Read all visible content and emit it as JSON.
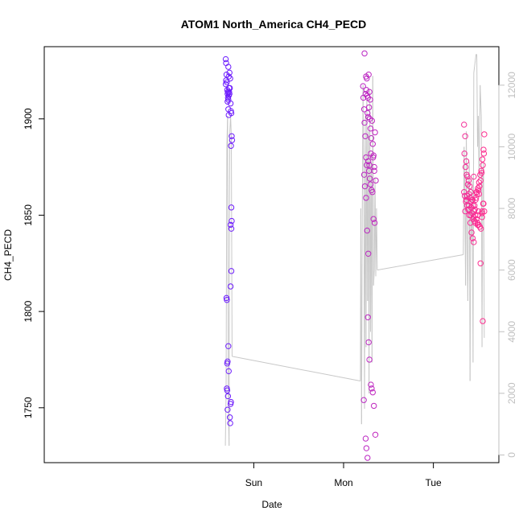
{
  "chart_data": {
    "type": "scatter",
    "title": "ATOM1 North_America CH4_PECD",
    "xlabel": "Date",
    "ylabel": "CH4_PECD",
    "x_unit": "hours since Sat 00:00",
    "xlim": [
      -32,
      89.5
    ],
    "ylim": [
      1721.5,
      1937.5
    ],
    "y2lim": [
      -250,
      13250
    ],
    "x_ticks": [
      {
        "x": 24,
        "label": "Sun"
      },
      {
        "x": 48,
        "label": "Mon"
      },
      {
        "x": 72,
        "label": "Tue"
      }
    ],
    "y_ticks": [
      1750,
      1800,
      1850,
      1900
    ],
    "y2_ticks": [
      0,
      2000,
      4000,
      6000,
      8000,
      10000,
      12000
    ],
    "grid": false,
    "legend": "none",
    "series": [
      {
        "style": "points",
        "axis": "left",
        "color_gradient": [
          "#6a1cff",
          "#ff2f8f"
        ],
        "x": [
          16.5,
          16.6,
          16.7,
          16.8,
          16.9,
          16.5,
          16.6,
          17.0,
          17.1,
          17.2,
          17.0,
          17.3,
          17.1,
          17.4,
          17.2,
          17.5,
          17.3,
          17.6,
          17.4,
          17.5,
          17.7,
          17.8,
          17.2,
          17.3,
          17.9,
          18.0,
          18.1,
          18.2,
          18.0,
          18.1,
          17.8,
          18.0,
          17.9,
          18.0,
          17.8,
          16.7,
          16.8,
          17.2,
          17.0,
          16.9,
          17.3,
          16.8,
          16.9,
          17.1,
          17.0,
          17.6,
          17.7,
          17.8,
          17.9,
          53.2,
          53.3,
          53.5,
          53.6,
          53.8,
          54.0,
          54.2,
          54.1,
          53.9,
          54.3,
          54.5,
          54.7,
          54.9,
          55.1,
          54.4,
          54.6,
          54.8,
          55.0,
          55.2,
          55.4,
          55.6,
          55.8,
          56.0,
          56.2,
          56.4,
          54.0,
          54.2,
          53.5,
          53.7,
          54.8,
          55.0,
          55.3,
          54.6,
          54.9,
          55.2,
          55.5,
          55.7,
          56.0,
          56.3,
          54.0,
          54.3,
          54.6,
          54.5,
          54.7,
          54.9,
          55.3,
          55.5,
          55.8,
          56.1,
          56.5,
          53.9,
          54.1,
          54.4,
          53.4,
          53.6,
          55.9,
          56.2,
          56.6,
          80.2,
          80.5,
          80.8,
          81.1,
          81.4,
          81.7,
          82.0,
          82.3,
          82.6,
          82.9,
          83.2,
          83.5,
          83.8,
          84.1,
          84.4,
          84.7,
          85.0,
          85.3,
          85.6,
          80.3,
          80.6,
          80.9,
          81.2,
          81.5,
          81.8,
          82.1,
          82.4,
          82.7,
          83.0,
          83.3,
          83.6,
          83.9,
          84.2,
          84.5,
          84.8,
          85.1,
          85.4,
          80.4,
          80.7,
          81.0,
          81.3,
          81.6,
          81.9,
          82.2,
          82.5,
          82.8,
          83.1,
          83.4,
          83.7,
          84.0,
          84.3,
          84.6,
          84.9,
          85.2,
          85.5,
          80.2,
          80.8,
          81.4,
          82.0,
          82.6,
          83.2,
          83.8,
          84.4,
          85.0,
          85.6,
          81.0,
          82.0,
          83.0,
          84.0,
          85.0,
          84.6,
          85.2,
          83.5,
          82.5,
          81.5,
          80.5,
          84.2,
          85.4,
          83.9,
          82.8
        ],
        "y": [
          1931,
          1929,
          1923,
          1919,
          1915,
          1918,
          1920,
          1913,
          1911,
          1910,
          1909,
          1912,
          1914,
          1916,
          1927,
          1924,
          1922,
          1916,
          1914,
          1913,
          1921,
          1908,
          1905,
          1902,
          1904,
          1903,
          1891,
          1889,
          1854,
          1847,
          1845,
          1843,
          1886,
          1821,
          1813,
          1807,
          1806,
          1782,
          1774,
          1773,
          1769,
          1760,
          1759,
          1756,
          1749,
          1745,
          1742,
          1752,
          1753,
          1917,
          1911,
          1905,
          1898,
          1891,
          1922,
          1921,
          1915,
          1913,
          1912,
          1911,
          1923,
          1914,
          1910,
          1903,
          1901,
          1906,
          1900,
          1895,
          1890,
          1899,
          1887,
          1881,
          1873,
          1893,
          1880,
          1876,
          1871,
          1865,
          1873,
          1869,
          1882,
          1878,
          1876,
          1866,
          1863,
          1862,
          1848,
          1846,
          1859,
          1842,
          1830,
          1797,
          1784,
          1775,
          1762,
          1760,
          1758,
          1751,
          1736,
          1734,
          1729,
          1724,
          1754,
          1934,
          1880,
          1875,
          1868,
          1897,
          1891,
          1878,
          1870,
          1868,
          1865,
          1862,
          1858,
          1855,
          1852,
          1850,
          1848,
          1846,
          1845,
          1844,
          1843,
          1852,
          1856,
          1892,
          1882,
          1875,
          1871,
          1866,
          1861,
          1859,
          1854,
          1851,
          1849,
          1847,
          1858,
          1862,
          1864,
          1867,
          1871,
          1873,
          1879,
          1884,
          1860,
          1857,
          1855,
          1853,
          1850,
          1846,
          1841,
          1838,
          1836,
          1853,
          1859,
          1861,
          1863,
          1865,
          1868,
          1872,
          1876,
          1882,
          1862,
          1858,
          1853,
          1850,
          1848,
          1846,
          1845,
          1844,
          1849,
          1852,
          1860,
          1857,
          1855,
          1852,
          1851,
          1825,
          1795,
          1862,
          1858,
          1855,
          1852,
          1861,
          1856,
          1850,
          1870
        ]
      },
      {
        "style": "line",
        "axis": "right",
        "color": "#c8c8c8",
        "x": [
          16.4,
          16.6,
          16.8,
          17.0,
          17.2,
          17.4,
          17.5,
          17.6,
          17.8,
          18.0,
          18.2,
          52.5,
          52.6,
          52.8,
          53.0,
          53.2,
          53.4,
          53.6,
          53.8,
          54.0,
          54.2,
          54.4,
          54.6,
          54.8,
          55.0,
          55.2,
          55.4,
          55.6,
          55.8,
          56.0,
          56.2,
          56.4,
          56.6,
          56.8,
          57.0,
          80.0,
          80.2,
          80.4,
          80.6,
          80.8,
          81.0,
          81.2,
          81.4,
          81.6,
          81.8,
          82.0,
          82.2,
          82.4,
          82.6,
          82.8,
          83.0,
          83.2,
          83.4,
          83.6,
          83.8,
          84.0,
          84.2,
          84.5,
          84.8,
          85.0,
          85.2,
          85.4,
          85.6
        ],
        "y": [
          300,
          2000,
          10000,
          11000,
          1500,
          300,
          8000,
          10500,
          11000,
          10300,
          3200,
          2400,
          8000,
          1000,
          8000,
          12000,
          9000,
          1500,
          11000,
          3500,
          11500,
          5000,
          10500,
          2000,
          11800,
          4000,
          9500,
          3000,
          12300,
          5500,
          6000,
          9000,
          5800,
          8000,
          6000,
          6500,
          10000,
          8500,
          5500,
          10500,
          7000,
          5000,
          8500,
          9500,
          2400,
          8000,
          7000,
          9000,
          3000,
          12400,
          12600,
          12800,
          13000,
          13000,
          10000,
          11000,
          9000,
          12000,
          11000,
          3500,
          9000,
          9500,
          3800
        ]
      }
    ]
  }
}
